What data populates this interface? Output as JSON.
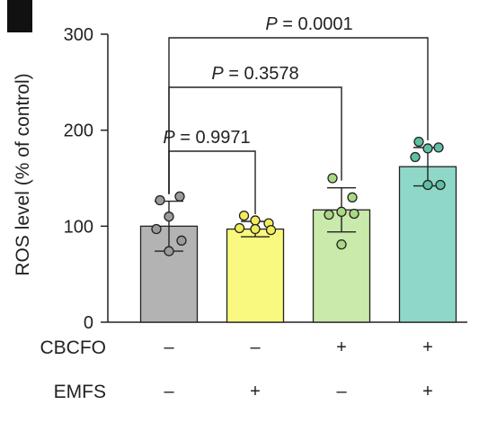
{
  "chart_data": {
    "type": "bar",
    "ylabel": "ROS level (% of control)",
    "ylim": [
      0,
      300
    ],
    "yticks": [
      "0",
      "100",
      "200",
      "300"
    ],
    "grid": false,
    "groups": [
      {
        "value": 100,
        "error": 26,
        "color": "#b3b3b3",
        "points": [
          127,
          131,
          110,
          97,
          85,
          74
        ]
      },
      {
        "value": 97,
        "error": 8,
        "color": "#faf97f",
        "points": [
          111,
          103,
          106,
          98,
          96,
          97
        ]
      },
      {
        "value": 117,
        "error": 23,
        "color": "#c9eaaa",
        "points": [
          150,
          130,
          115,
          112,
          113,
          81
        ]
      },
      {
        "value": 162,
        "error": 20,
        "color": "#8fd8c8",
        "points": [
          188,
          182,
          181,
          172,
          143,
          143
        ]
      }
    ],
    "factors": [
      {
        "label": "CBCFO",
        "signs": [
          "–",
          "–",
          "+",
          "+"
        ]
      },
      {
        "label": "EMFS",
        "signs": [
          "–",
          "+",
          "–",
          "+"
        ]
      }
    ],
    "comparisons": [
      {
        "from": 0,
        "to": 1,
        "p_symbol": "P",
        "p_value": " = 0.9971"
      },
      {
        "from": 0,
        "to": 2,
        "p_symbol": "P",
        "p_value": " = 0.3578"
      },
      {
        "from": 0,
        "to": 3,
        "p_symbol": "P",
        "p_value": " = 0.0001"
      }
    ],
    "colors": {
      "axis": "#222222",
      "point_stroke": "#222222",
      "point_fills": [
        "#9a9a9a",
        "#f2ee5a",
        "#a9d984",
        "#5fbfa5"
      ]
    }
  }
}
